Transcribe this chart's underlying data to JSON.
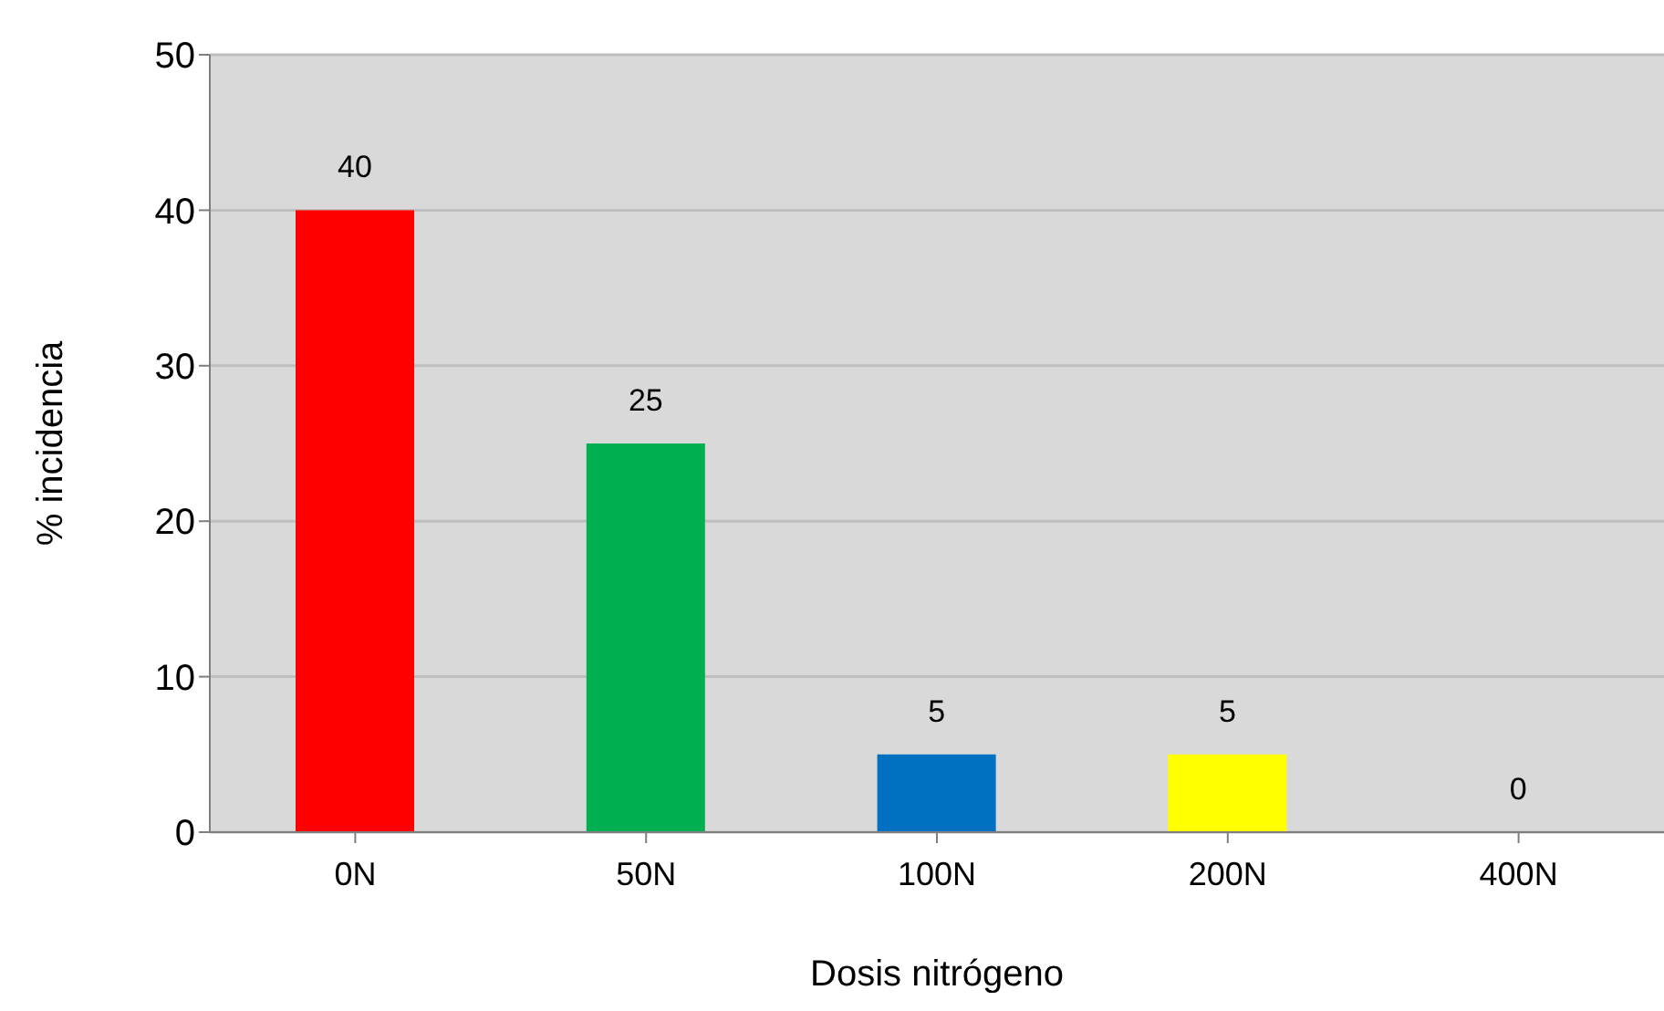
{
  "chart_data": {
    "type": "bar",
    "xlabel": "Dosis nitrógeno",
    "ylabel": "% incidencia",
    "categories": [
      "0N",
      "50N",
      "100N",
      "200N",
      "400N"
    ],
    "values": [
      40,
      25,
      5,
      5,
      0
    ],
    "colors": [
      "#ff0000",
      "#00b050",
      "#0070c0",
      "#ffff00",
      "#7030a0"
    ],
    "ylim": [
      0,
      50
    ],
    "yticks": [
      0,
      10,
      20,
      30,
      40,
      50
    ],
    "grid": "y",
    "data_labels": true
  }
}
